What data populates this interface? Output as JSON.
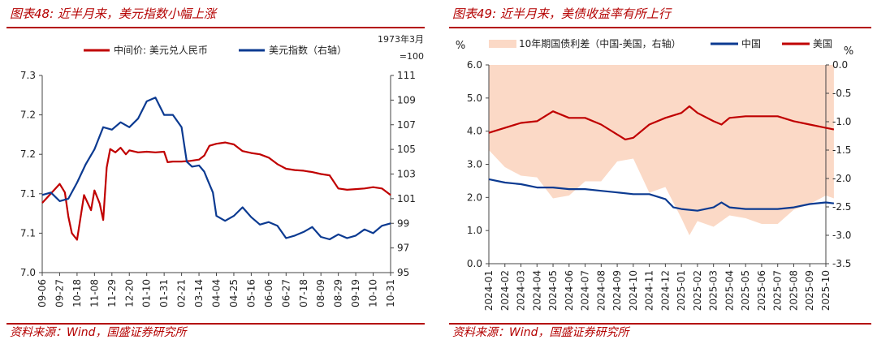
{
  "left": {
    "title": "图表48:  近半月来，美元指数小幅上涨",
    "source": "资料来源：Wind，国盛证券研究所",
    "chart_data": {
      "type": "line",
      "legend": [
        "中间价: 美元兑人民币",
        "美元指数（右轴）"
      ],
      "right_axis_note": [
        "1973年3月",
        "=100"
      ],
      "y_left_ticks": [
        "7.0",
        "7.1",
        "7.1",
        "7.2",
        "7.2",
        "7.3"
      ],
      "y_left_range": [
        7.0,
        7.3
      ],
      "y_right_ticks": [
        "95",
        "97",
        "99",
        "101",
        "103",
        "105",
        "107",
        "109",
        "111"
      ],
      "y_right_range": [
        95,
        111
      ],
      "x_ticks": [
        "09-06",
        "09-27",
        "10-18",
        "11-08",
        "11-29",
        "12-20",
        "01-10",
        "01-31",
        "02-21",
        "03-14",
        "04-04",
        "04-25",
        "05-16",
        "06-06",
        "06-27",
        "07-18",
        "08-09",
        "08-29",
        "09-19",
        "10-10",
        "10-31"
      ],
      "series": [
        {
          "name": "中间价: 美元兑人民币",
          "color": "#c00000",
          "axis": "left",
          "points": [
            [
              0,
              7.106
            ],
            [
              1,
              7.135
            ],
            [
              1.3,
              7.122
            ],
            [
              1.5,
              7.085
            ],
            [
              1.7,
              7.06
            ],
            [
              2,
              7.05
            ],
            [
              2.4,
              7.118
            ],
            [
              2.8,
              7.095
            ],
            [
              3,
              7.125
            ],
            [
              3.3,
              7.105
            ],
            [
              3.5,
              7.08
            ],
            [
              3.7,
              7.16
            ],
            [
              3.9,
              7.188
            ],
            [
              4.2,
              7.183
            ],
            [
              4.5,
              7.19
            ],
            [
              4.8,
              7.18
            ],
            [
              5,
              7.186
            ],
            [
              5.5,
              7.183
            ],
            [
              6,
              7.184
            ],
            [
              6.5,
              7.183
            ],
            [
              7,
              7.184
            ],
            [
              7.2,
              7.168
            ],
            [
              7.5,
              7.169
            ],
            [
              8,
              7.169
            ],
            [
              8.5,
              7.17
            ],
            [
              9,
              7.172
            ],
            [
              9.3,
              7.178
            ],
            [
              9.6,
              7.193
            ],
            [
              10,
              7.196
            ],
            [
              10.5,
              7.198
            ],
            [
              11,
              7.195
            ],
            [
              11.5,
              7.185
            ],
            [
              12,
              7.182
            ],
            [
              12.5,
              7.18
            ],
            [
              13,
              7.175
            ],
            [
              13.5,
              7.165
            ],
            [
              14,
              7.158
            ],
            [
              14.5,
              7.156
            ],
            [
              15,
              7.155
            ],
            [
              15.5,
              7.153
            ],
            [
              16,
              7.15
            ],
            [
              16.5,
              7.148
            ],
            [
              17,
              7.128
            ],
            [
              17.5,
              7.126
            ],
            [
              18,
              7.127
            ],
            [
              18.5,
              7.128
            ],
            [
              19,
              7.13
            ],
            [
              19.5,
              7.128
            ],
            [
              20,
              7.118
            ]
          ]
        },
        {
          "name": "美元指数（右轴）",
          "color": "#0b3a91",
          "axis": "right",
          "points": [
            [
              0,
              101.3
            ],
            [
              0.5,
              101.5
            ],
            [
              1,
              100.8
            ],
            [
              1.5,
              101.0
            ],
            [
              2,
              102.3
            ],
            [
              2.5,
              103.8
            ],
            [
              3,
              105.0
            ],
            [
              3.5,
              106.8
            ],
            [
              4,
              106.6
            ],
            [
              4.5,
              107.2
            ],
            [
              5,
              106.8
            ],
            [
              5.5,
              107.5
            ],
            [
              6,
              108.9
            ],
            [
              6.5,
              109.2
            ],
            [
              7,
              107.8
            ],
            [
              7.5,
              107.8
            ],
            [
              8,
              106.8
            ],
            [
              8.3,
              104.0
            ],
            [
              8.6,
              103.6
            ],
            [
              9,
              103.7
            ],
            [
              9.3,
              103.2
            ],
            [
              9.5,
              102.5
            ],
            [
              9.8,
              101.5
            ],
            [
              10,
              99.6
            ],
            [
              10.5,
              99.2
            ],
            [
              11,
              99.6
            ],
            [
              11.5,
              100.3
            ],
            [
              12,
              99.5
            ],
            [
              12.5,
              98.9
            ],
            [
              13,
              99.1
            ],
            [
              13.5,
              98.8
            ],
            [
              14,
              97.8
            ],
            [
              14.5,
              98.0
            ],
            [
              15,
              98.3
            ],
            [
              15.5,
              98.7
            ],
            [
              16,
              97.9
            ],
            [
              16.5,
              97.7
            ],
            [
              17,
              98.1
            ],
            [
              17.5,
              97.8
            ],
            [
              18,
              98.0
            ],
            [
              18.5,
              98.5
            ],
            [
              19,
              98.2
            ],
            [
              19.5,
              98.8
            ],
            [
              20,
              99.0
            ]
          ]
        }
      ]
    }
  },
  "right": {
    "title": "图表49:  近半月来，美债收益率有所上行",
    "source": "资料来源：Wind，国盛证券研究所",
    "chart_data": {
      "type": "line",
      "legend": [
        "10年期国债利差（中国-美国，右轴）",
        "中国",
        "美国"
      ],
      "y_left_unit": "%",
      "y_right_unit": "%",
      "y_left_ticks": [
        "0.0",
        "1.0",
        "2.0",
        "3.0",
        "4.0",
        "5.0",
        "6.0"
      ],
      "y_left_range": [
        0.0,
        6.0
      ],
      "y_right_ticks": [
        "-3.5",
        "-3.0",
        "-2.5",
        "-2.0",
        "-1.5",
        "-1.0",
        "-0.5",
        "0.0"
      ],
      "y_right_range": [
        -3.5,
        0.0
      ],
      "x_ticks": [
        "2024-01",
        "2024-02",
        "2024-03",
        "2024-04",
        "2024-05",
        "2024-06",
        "2024-07",
        "2024-08",
        "2024-09",
        "2024-10",
        "2024-11",
        "2024-12",
        "2025-01",
        "2025-02",
        "2025-03",
        "2025-04",
        "2025-05",
        "2025-06",
        "2025-07",
        "2025-08",
        "2025-09",
        "2025-10"
      ],
      "series": [
        {
          "name": "10年期国债利差（中国-美国，右轴）",
          "color": "#fbd9c6",
          "type": "area",
          "axis": "right",
          "points": [
            [
              0,
              -1.5
            ],
            [
              1,
              -1.8
            ],
            [
              2,
              -1.95
            ],
            [
              3,
              -1.98
            ],
            [
              4,
              -2.35
            ],
            [
              5,
              -2.3
            ],
            [
              6,
              -2.05
            ],
            [
              7,
              -2.05
            ],
            [
              8,
              -1.7
            ],
            [
              9,
              -1.65
            ],
            [
              10,
              -2.25
            ],
            [
              11,
              -2.15
            ],
            [
              12,
              -2.7
            ],
            [
              12.5,
              -3.0
            ],
            [
              13,
              -2.75
            ],
            [
              14,
              -2.85
            ],
            [
              15,
              -2.65
            ],
            [
              16,
              -2.7
            ],
            [
              17,
              -2.8
            ],
            [
              18,
              -2.8
            ],
            [
              19,
              -2.55
            ],
            [
              20,
              -2.45
            ],
            [
              21,
              -2.3
            ],
            [
              21.5,
              -2.35
            ]
          ]
        },
        {
          "name": "中国",
          "color": "#0b3a91",
          "axis": "left",
          "points": [
            [
              0,
              2.55
            ],
            [
              1,
              2.45
            ],
            [
              2,
              2.4
            ],
            [
              3,
              2.3
            ],
            [
              4,
              2.3
            ],
            [
              5,
              2.25
            ],
            [
              6,
              2.25
            ],
            [
              7,
              2.2
            ],
            [
              8,
              2.15
            ],
            [
              9,
              2.1
            ],
            [
              10,
              2.1
            ],
            [
              11,
              1.95
            ],
            [
              11.5,
              1.7
            ],
            [
              12,
              1.65
            ],
            [
              13,
              1.6
            ],
            [
              14,
              1.7
            ],
            [
              14.5,
              1.85
            ],
            [
              15,
              1.7
            ],
            [
              16,
              1.65
            ],
            [
              17,
              1.65
            ],
            [
              18,
              1.65
            ],
            [
              19,
              1.7
            ],
            [
              20,
              1.8
            ],
            [
              21,
              1.85
            ],
            [
              21.5,
              1.82
            ]
          ]
        },
        {
          "name": "美国",
          "color": "#c00000",
          "axis": "left",
          "points": [
            [
              0,
              3.95
            ],
            [
              1,
              4.1
            ],
            [
              2,
              4.25
            ],
            [
              3,
              4.3
            ],
            [
              4,
              4.6
            ],
            [
              5,
              4.4
            ],
            [
              6,
              4.4
            ],
            [
              7,
              4.2
            ],
            [
              8,
              3.9
            ],
            [
              8.5,
              3.75
            ],
            [
              9,
              3.8
            ],
            [
              10,
              4.2
            ],
            [
              11,
              4.4
            ],
            [
              12,
              4.55
            ],
            [
              12.5,
              4.75
            ],
            [
              13,
              4.55
            ],
            [
              14,
              4.3
            ],
            [
              14.5,
              4.2
            ],
            [
              15,
              4.4
            ],
            [
              16,
              4.45
            ],
            [
              17,
              4.45
            ],
            [
              18,
              4.45
            ],
            [
              19,
              4.3
            ],
            [
              20,
              4.2
            ],
            [
              21,
              4.1
            ],
            [
              21.5,
              4.05
            ]
          ]
        }
      ]
    }
  }
}
